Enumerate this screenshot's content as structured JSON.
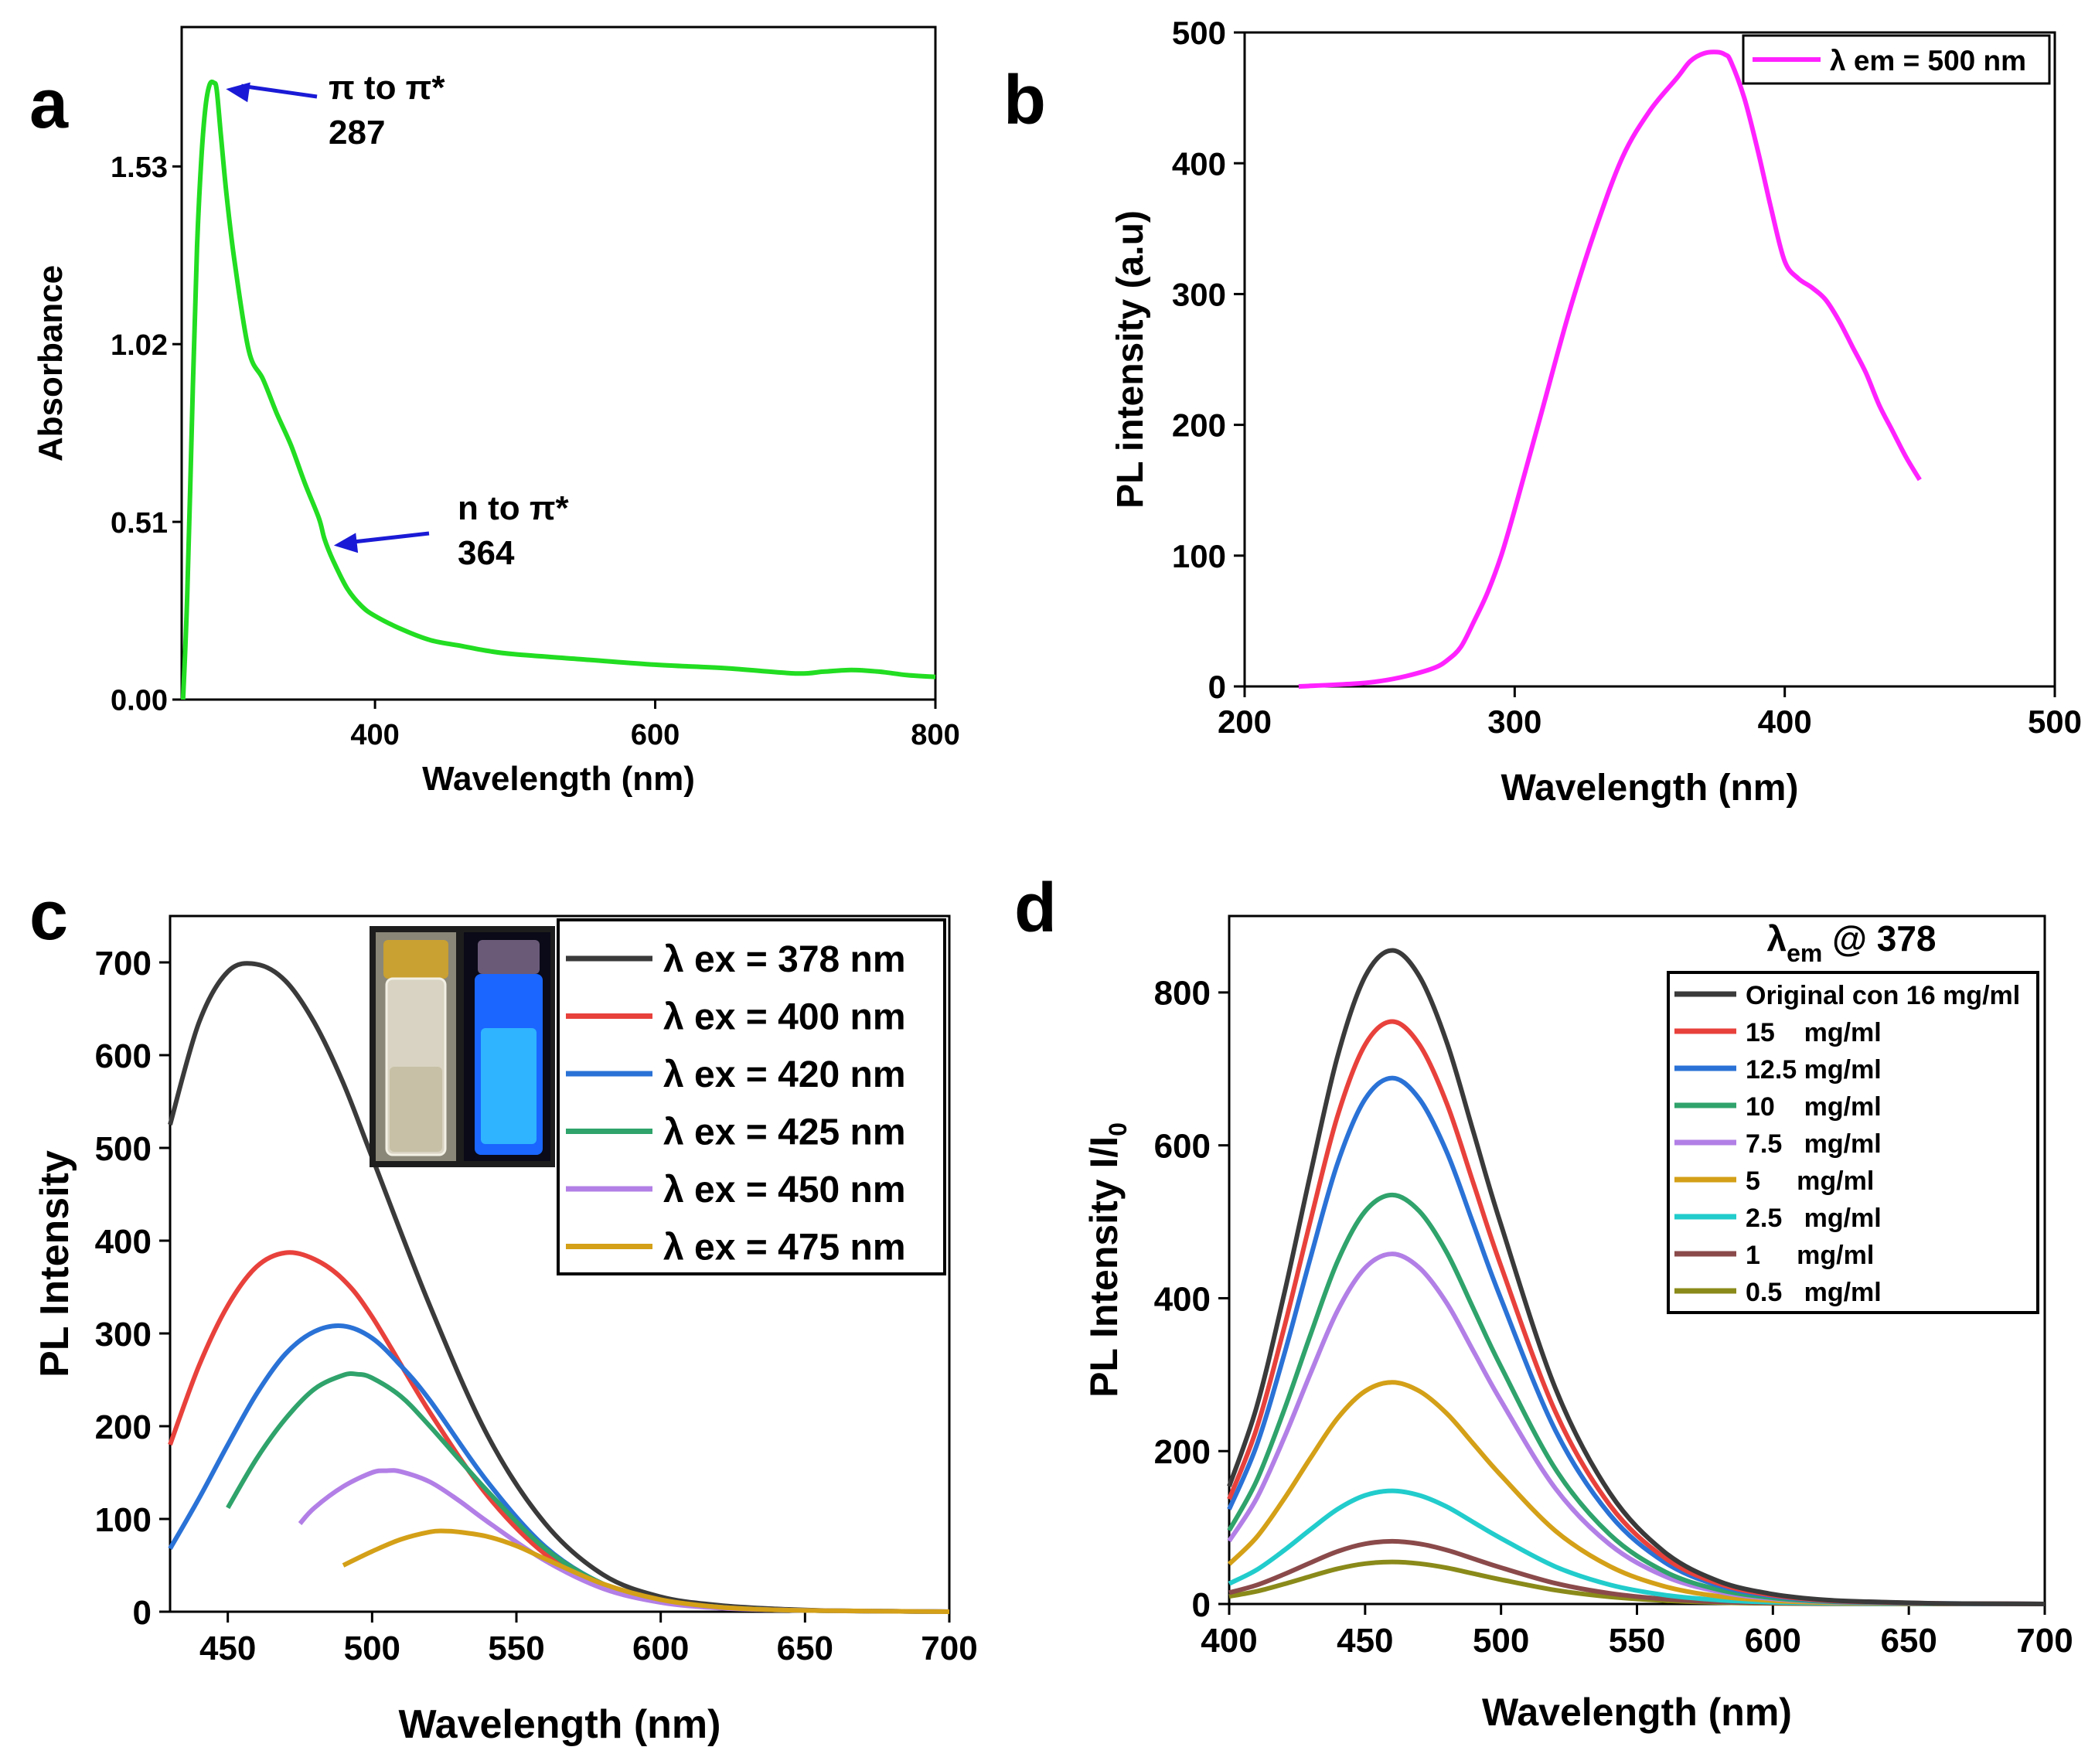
{
  "figure": {
    "panels": [
      "a",
      "b",
      "c",
      "d"
    ]
  },
  "chart_data": [
    {
      "panel": "a",
      "type": "line",
      "xlabel": "Wavelength (nm)",
      "ylabel": "Absorbance",
      "xlim": [
        262,
        800
      ],
      "ylim": [
        0,
        1.93
      ],
      "xticks": [
        400,
        600,
        800
      ],
      "yticks": [
        0.0,
        0.51,
        1.02,
        1.53
      ],
      "ytick_labels": [
        "0.00",
        "0.51",
        "1.02",
        "1.53"
      ],
      "color": "#22dd22",
      "series": [
        {
          "name": "Absorbance",
          "x": [
            263,
            266,
            270,
            273,
            276,
            279,
            282,
            285,
            287,
            290,
            294,
            300,
            310,
            320,
            330,
            340,
            350,
            360,
            364,
            370,
            380,
            390,
            400,
            420,
            440,
            460,
            480,
            500,
            550,
            600,
            650,
            700,
            720,
            740,
            760,
            780,
            800
          ],
          "y": [
            0.0,
            0.3,
            0.9,
            1.3,
            1.55,
            1.7,
            1.765,
            1.77,
            1.75,
            1.62,
            1.45,
            1.25,
            1.0,
            0.92,
            0.82,
            0.73,
            0.62,
            0.52,
            0.46,
            0.4,
            0.32,
            0.27,
            0.24,
            0.2,
            0.17,
            0.155,
            0.14,
            0.13,
            0.115,
            0.1,
            0.09,
            0.075,
            0.08,
            0.085,
            0.08,
            0.07,
            0.065
          ]
        }
      ],
      "annotations": [
        {
          "line1": "π to π*",
          "line2": "287",
          "x": 287,
          "y": 1.77
        },
        {
          "line1": "n to π*",
          "line2": "364",
          "x": 364,
          "y": 0.46
        }
      ]
    },
    {
      "panel": "b",
      "type": "line",
      "xlabel": "Wavelength (nm)",
      "ylabel": "PL intensity (a.u)",
      "xlim": [
        200,
        500
      ],
      "ylim": [
        0,
        500
      ],
      "xticks": [
        200,
        300,
        400,
        500
      ],
      "yticks": [
        0,
        100,
        200,
        300,
        400,
        500
      ],
      "legend": {
        "position": "top-right"
      },
      "series": [
        {
          "name": "λ em = 500 nm",
          "color": "#ff22ff",
          "x": [
            220,
            240,
            250,
            260,
            270,
            275,
            280,
            285,
            290,
            295,
            300,
            310,
            320,
            330,
            340,
            350,
            360,
            365,
            370,
            375,
            378,
            380,
            385,
            390,
            395,
            400,
            405,
            410,
            415,
            420,
            425,
            430,
            435,
            440,
            445,
            450
          ],
          "y": [
            0,
            2,
            4,
            8,
            14,
            20,
            30,
            50,
            72,
            100,
            135,
            210,
            285,
            350,
            405,
            440,
            465,
            478,
            484,
            485,
            483,
            478,
            450,
            410,
            365,
            325,
            312,
            305,
            296,
            280,
            260,
            240,
            215,
            195,
            175,
            158
          ]
        }
      ]
    },
    {
      "panel": "c",
      "type": "line",
      "xlabel": "Wavelength (nm)",
      "ylabel": "PL Intensity",
      "xlim": [
        430,
        700
      ],
      "ylim": [
        0,
        750
      ],
      "xticks": [
        450,
        500,
        550,
        600,
        650,
        700
      ],
      "yticks": [
        0,
        100,
        200,
        300,
        400,
        500,
        600,
        700
      ],
      "legend": {
        "position": "top-right"
      },
      "inset": "photograph of two sample vials (daylight and UV illumination)",
      "series": [
        {
          "name": "λ ex = 378 nm",
          "color": "#3a3a3a",
          "x": [
            430,
            440,
            450,
            460,
            470,
            480,
            490,
            500,
            520,
            540,
            560,
            580,
            600,
            620,
            640,
            660,
            680,
            700
          ],
          "y": [
            525,
            635,
            690,
            698,
            680,
            635,
            570,
            490,
            330,
            190,
            95,
            40,
            16,
            7,
            3,
            1,
            0.5,
            0
          ]
        },
        {
          "name": "λ ex = 400 nm",
          "color": "#e8413c",
          "x": [
            430,
            440,
            450,
            460,
            470,
            480,
            490,
            500,
            520,
            540,
            560,
            580,
            600,
            620,
            640,
            660,
            680,
            700
          ],
          "y": [
            180,
            265,
            330,
            372,
            387,
            380,
            358,
            318,
            215,
            125,
            62,
            27,
            11,
            5,
            2,
            1,
            0.5,
            0
          ]
        },
        {
          "name": "λ ex = 420 nm",
          "color": "#2a72d6",
          "x": [
            430,
            440,
            450,
            460,
            470,
            480,
            490,
            500,
            510,
            520,
            540,
            560,
            580,
            600,
            620,
            640,
            660,
            700
          ],
          "y": [
            68,
            122,
            180,
            235,
            278,
            302,
            308,
            295,
            265,
            228,
            140,
            70,
            30,
            12,
            5,
            2,
            1,
            0
          ]
        },
        {
          "name": "λ ex = 425 nm",
          "color": "#2fa36b",
          "x": [
            450,
            460,
            470,
            480,
            490,
            495,
            500,
            510,
            520,
            540,
            560,
            580,
            600,
            620,
            640,
            660,
            700
          ],
          "y": [
            112,
            165,
            208,
            240,
            255,
            256,
            252,
            232,
            200,
            130,
            68,
            30,
            12,
            5,
            2,
            1,
            0
          ]
        },
        {
          "name": "λ ex = 450 nm",
          "color": "#b27fe6",
          "x": [
            475,
            480,
            490,
            500,
            505,
            510,
            520,
            530,
            540,
            560,
            580,
            600,
            620,
            640,
            660,
            700
          ],
          "y": [
            95,
            112,
            135,
            150,
            152,
            151,
            140,
            120,
            97,
            55,
            25,
            10,
            4,
            2,
            1,
            0
          ]
        },
        {
          "name": "λ ex = 475 nm",
          "color": "#d4a017",
          "x": [
            490,
            500,
            510,
            520,
            525,
            530,
            540,
            550,
            560,
            580,
            600,
            620,
            640,
            660,
            700
          ],
          "y": [
            50,
            65,
            78,
            86,
            87,
            86,
            81,
            71,
            57,
            30,
            13,
            5,
            2,
            1,
            0
          ]
        }
      ]
    },
    {
      "panel": "d",
      "type": "line",
      "xlabel": "Wavelength (nm)",
      "ylabel_main": "PL Intensity I/I",
      "ylabel_sub": "0",
      "xlim": [
        400,
        700
      ],
      "ylim": [
        0,
        900
      ],
      "xticks": [
        400,
        450,
        500,
        550,
        600,
        650,
        700
      ],
      "yticks": [
        0,
        200,
        400,
        600,
        800
      ],
      "legend": {
        "position": "top-right",
        "title_main": "λ",
        "title_sub": "em",
        "title_rest": " @ 378"
      },
      "shape_x": [
        400,
        410,
        420,
        430,
        440,
        450,
        460,
        470,
        480,
        490,
        500,
        520,
        540,
        560,
        580,
        600,
        620,
        640,
        660,
        680,
        700
      ],
      "shape_y": [
        0.18,
        0.3,
        0.47,
        0.66,
        0.84,
        0.96,
        1.0,
        0.96,
        0.86,
        0.72,
        0.58,
        0.33,
        0.17,
        0.08,
        0.035,
        0.015,
        0.006,
        0.003,
        0.001,
        0.0005,
        0
      ],
      "series": [
        {
          "name": "Original con 16 mg/ml",
          "color": "#3a3a3a",
          "peak": 855
        },
        {
          "name": "15    mg/ml",
          "color": "#e8413c",
          "peak": 762
        },
        {
          "name": "12.5 mg/ml",
          "color": "#2a72d6",
          "peak": 688
        },
        {
          "name": "10    mg/ml",
          "color": "#2fa36b",
          "peak": 535
        },
        {
          "name": "7.5   mg/ml",
          "color": "#b27fe6",
          "peak": 458
        },
        {
          "name": "5     mg/ml",
          "color": "#d4a017",
          "peak": 290
        },
        {
          "name": "2.5   mg/ml",
          "color": "#22cccc",
          "peak": 148
        },
        {
          "name": "1     mg/ml",
          "color": "#8b4a4a",
          "peak": 82
        },
        {
          "name": "0.5   mg/ml",
          "color": "#8a8a1a",
          "peak": 55
        }
      ]
    }
  ]
}
